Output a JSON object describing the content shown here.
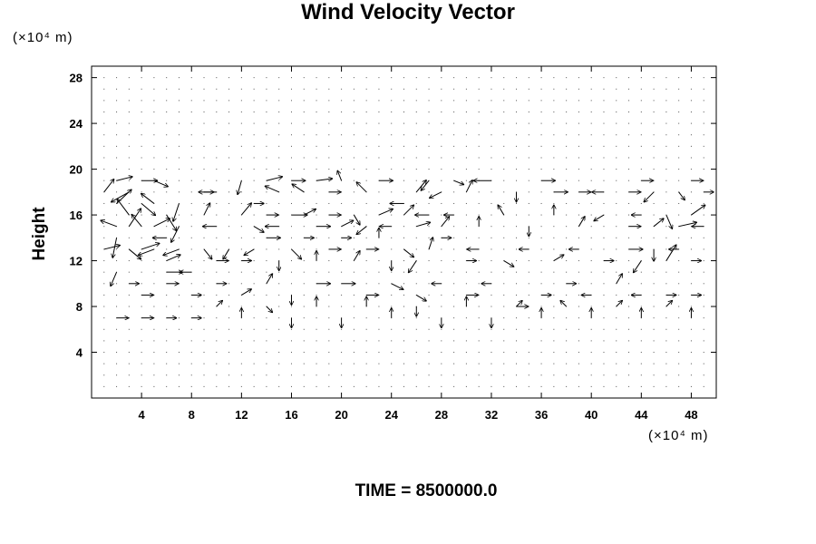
{
  "chart_data": {
    "type": "vector-field",
    "title": "Wind Velocity Vector",
    "ylabel": "Height",
    "xlabel": "",
    "x_unit_label": "(×10⁴ m)",
    "y_unit_label": "(×10⁴ m)",
    "xlim": [
      0,
      50
    ],
    "ylim": [
      0,
      29
    ],
    "xticks": [
      4,
      8,
      12,
      16,
      20,
      24,
      28,
      32,
      36,
      40,
      44,
      48
    ],
    "yticks": [
      4,
      8,
      12,
      16,
      20,
      24,
      28
    ],
    "x_tick_labels": [
      "4",
      "8",
      "12",
      "16",
      "20",
      "24",
      "28",
      "32",
      "36",
      "40",
      "44",
      "48"
    ],
    "y_tick_labels": [
      "4",
      "8",
      "12",
      "16",
      "20",
      "24",
      "28"
    ],
    "grid": false,
    "vector_color": "#000000",
    "note": "",
    "footer": "TIME = 8500000.0",
    "vectors": [
      {
        "x": 1,
        "y": 18,
        "u": 1.0,
        "v": 1.3
      },
      {
        "x": 2,
        "y": 19,
        "u": 1.6,
        "v": 0.4
      },
      {
        "x": 3,
        "y": 18,
        "u": -1.8,
        "v": -1.0
      },
      {
        "x": 4,
        "y": 19,
        "u": 1.6,
        "v": 0.0
      },
      {
        "x": 5,
        "y": 19,
        "u": 1.4,
        "v": -0.6
      },
      {
        "x": 2,
        "y": 17,
        "u": 1.5,
        "v": 1.4
      },
      {
        "x": 3,
        "y": 16,
        "u": -1.2,
        "v": 1.6
      },
      {
        "x": 4,
        "y": 17,
        "u": 1.4,
        "v": -1.2
      },
      {
        "x": 5,
        "y": 17,
        "u": -1.3,
        "v": 1.0
      },
      {
        "x": 6,
        "y": 16,
        "u": 1.0,
        "v": -1.6
      },
      {
        "x": 7,
        "y": 17,
        "u": -0.6,
        "v": -1.8
      },
      {
        "x": 2,
        "y": 15,
        "u": -1.6,
        "v": 0.6
      },
      {
        "x": 3,
        "y": 15,
        "u": 1.2,
        "v": 1.8
      },
      {
        "x": 4,
        "y": 15,
        "u": -1.0,
        "v": 1.2
      },
      {
        "x": 5,
        "y": 15,
        "u": 1.6,
        "v": 0.8
      },
      {
        "x": 6,
        "y": 14,
        "u": -1.4,
        "v": 0.0
      },
      {
        "x": 7,
        "y": 15,
        "u": -0.8,
        "v": -1.6
      },
      {
        "x": 1,
        "y": 13,
        "u": 1.6,
        "v": 0.4
      },
      {
        "x": 2,
        "y": 14,
        "u": -0.4,
        "v": -2.0
      },
      {
        "x": 3,
        "y": 13,
        "u": 1.2,
        "v": -1.0
      },
      {
        "x": 4,
        "y": 13,
        "u": 1.8,
        "v": 0.6
      },
      {
        "x": 5,
        "y": 13,
        "u": -1.6,
        "v": -0.6
      },
      {
        "x": 6,
        "y": 12,
        "u": 1.4,
        "v": 0.6
      },
      {
        "x": 7,
        "y": 13,
        "u": -1.6,
        "v": -0.6
      },
      {
        "x": 2,
        "y": 11,
        "u": -0.6,
        "v": -1.4
      },
      {
        "x": 6,
        "y": 11,
        "u": 1.6,
        "v": 0.0
      },
      {
        "x": 8,
        "y": 11,
        "u": -1.2,
        "v": 0.0
      },
      {
        "x": 9,
        "y": 18,
        "u": 1.0,
        "v": 0.0
      },
      {
        "x": 10,
        "y": 18,
        "u": -1.8,
        "v": 0.0
      },
      {
        "x": 12,
        "y": 19,
        "u": -0.4,
        "v": -1.4
      },
      {
        "x": 13,
        "y": 17,
        "u": 1.0,
        "v": 0.0
      },
      {
        "x": 14,
        "y": 19,
        "u": 1.6,
        "v": 0.4
      },
      {
        "x": 15,
        "y": 18,
        "u": -1.4,
        "v": 0.6
      },
      {
        "x": 16,
        "y": 19,
        "u": 1.4,
        "v": 0.0
      },
      {
        "x": 17,
        "y": 18,
        "u": -1.2,
        "v": 0.8
      },
      {
        "x": 18,
        "y": 19,
        "u": 1.6,
        "v": 0.2
      },
      {
        "x": 19,
        "y": 18,
        "u": 1.2,
        "v": 0.0
      },
      {
        "x": 20,
        "y": 19,
        "u": -0.4,
        "v": 1.0
      },
      {
        "x": 22,
        "y": 18,
        "u": -1.0,
        "v": 1.0
      },
      {
        "x": 23,
        "y": 19,
        "u": 1.4,
        "v": 0.0
      },
      {
        "x": 25,
        "y": 17,
        "u": -1.4,
        "v": 0.0
      },
      {
        "x": 26,
        "y": 18,
        "u": 1.0,
        "v": 1.2
      },
      {
        "x": 27,
        "y": 19,
        "u": -0.8,
        "v": -1.0
      },
      {
        "x": 28,
        "y": 18,
        "u": -1.2,
        "v": -0.6
      },
      {
        "x": 29,
        "y": 19,
        "u": 1.0,
        "v": -0.4
      },
      {
        "x": 30,
        "y": 18,
        "u": 0.6,
        "v": 1.2
      },
      {
        "x": 32,
        "y": 19,
        "u": -1.8,
        "v": 0.0
      },
      {
        "x": 34,
        "y": 18,
        "u": 0.0,
        "v": -1.0
      },
      {
        "x": 36,
        "y": 19,
        "u": 1.4,
        "v": 0.0
      },
      {
        "x": 37,
        "y": 18,
        "u": 1.4,
        "v": 0.0
      },
      {
        "x": 39,
        "y": 18,
        "u": 1.2,
        "v": 0.0
      },
      {
        "x": 41,
        "y": 18,
        "u": -1.2,
        "v": 0.0
      },
      {
        "x": 43,
        "y": 18,
        "u": 1.2,
        "v": 0.0
      },
      {
        "x": 44,
        "y": 19,
        "u": 1.2,
        "v": 0.0
      },
      {
        "x": 45,
        "y": 18,
        "u": -1.0,
        "v": -1.0
      },
      {
        "x": 47,
        "y": 18,
        "u": 0.6,
        "v": -0.8
      },
      {
        "x": 48,
        "y": 19,
        "u": 1.2,
        "v": 0.0
      },
      {
        "x": 49,
        "y": 18,
        "u": 1.0,
        "v": 0.0
      },
      {
        "x": 9,
        "y": 16,
        "u": 0.6,
        "v": 1.2
      },
      {
        "x": 10,
        "y": 15,
        "u": -1.4,
        "v": 0.0
      },
      {
        "x": 12,
        "y": 16,
        "u": 1.0,
        "v": 1.2
      },
      {
        "x": 13,
        "y": 15,
        "u": 1.0,
        "v": -0.6
      },
      {
        "x": 14,
        "y": 16,
        "u": 1.2,
        "v": 0.0
      },
      {
        "x": 15,
        "y": 15,
        "u": -1.4,
        "v": 0.0
      },
      {
        "x": 16,
        "y": 16,
        "u": 1.6,
        "v": 0.0
      },
      {
        "x": 17,
        "y": 16,
        "u": 1.2,
        "v": 0.6
      },
      {
        "x": 18,
        "y": 15,
        "u": 1.4,
        "v": 0.0
      },
      {
        "x": 19,
        "y": 16,
        "u": 1.2,
        "v": 0.0
      },
      {
        "x": 20,
        "y": 15,
        "u": 1.2,
        "v": 0.6
      },
      {
        "x": 21,
        "y": 16,
        "u": 0.6,
        "v": -1.0
      },
      {
        "x": 22,
        "y": 15,
        "u": -1.0,
        "v": -0.8
      },
      {
        "x": 23,
        "y": 16,
        "u": 1.4,
        "v": 0.6
      },
      {
        "x": 24,
        "y": 15,
        "u": -1.2,
        "v": 0.0
      },
      {
        "x": 25,
        "y": 16,
        "u": 1.0,
        "v": 1.0
      },
      {
        "x": 26,
        "y": 15,
        "u": 1.4,
        "v": 0.4
      },
      {
        "x": 27,
        "y": 16,
        "u": -1.4,
        "v": 0.0
      },
      {
        "x": 28,
        "y": 15,
        "u": 0.8,
        "v": 1.0
      },
      {
        "x": 29,
        "y": 16,
        "u": -1.0,
        "v": 0.0
      },
      {
        "x": 31,
        "y": 15,
        "u": 0.0,
        "v": 1.0
      },
      {
        "x": 33,
        "y": 16,
        "u": -0.6,
        "v": 1.0
      },
      {
        "x": 35,
        "y": 15,
        "u": 0.0,
        "v": -1.0
      },
      {
        "x": 37,
        "y": 16,
        "u": 0.0,
        "v": 1.0
      },
      {
        "x": 39,
        "y": 15,
        "u": 0.6,
        "v": 1.0
      },
      {
        "x": 41,
        "y": 16,
        "u": -1.0,
        "v": -0.6
      },
      {
        "x": 43,
        "y": 15,
        "u": 1.2,
        "v": 0.0
      },
      {
        "x": 44,
        "y": 16,
        "u": -1.0,
        "v": 0.0
      },
      {
        "x": 45,
        "y": 15,
        "u": 1.0,
        "v": 0.8
      },
      {
        "x": 46,
        "y": 16,
        "u": 0.6,
        "v": -1.4
      },
      {
        "x": 47,
        "y": 15,
        "u": 1.8,
        "v": 0.4
      },
      {
        "x": 48,
        "y": 16,
        "u": 1.4,
        "v": 1.0
      },
      {
        "x": 49,
        "y": 15,
        "u": -1.2,
        "v": 0.0
      },
      {
        "x": 9,
        "y": 13,
        "u": 0.8,
        "v": -1.0
      },
      {
        "x": 10,
        "y": 12,
        "u": 1.2,
        "v": 0.0
      },
      {
        "x": 11,
        "y": 13,
        "u": -0.6,
        "v": -1.0
      },
      {
        "x": 12,
        "y": 12,
        "u": 1.0,
        "v": 0.0
      },
      {
        "x": 13,
        "y": 13,
        "u": -1.0,
        "v": -0.6
      },
      {
        "x": 14,
        "y": 14,
        "u": 1.4,
        "v": 0.0
      },
      {
        "x": 15,
        "y": 12,
        "u": 0.0,
        "v": -1.0
      },
      {
        "x": 16,
        "y": 13,
        "u": 1.0,
        "v": -1.0
      },
      {
        "x": 17,
        "y": 14,
        "u": 1.0,
        "v": 0.0
      },
      {
        "x": 18,
        "y": 12,
        "u": 0.0,
        "v": 1.0
      },
      {
        "x": 19,
        "y": 13,
        "u": 1.2,
        "v": 0.0
      },
      {
        "x": 20,
        "y": 14,
        "u": 1.0,
        "v": 0.0
      },
      {
        "x": 21,
        "y": 12,
        "u": 0.6,
        "v": 1.0
      },
      {
        "x": 22,
        "y": 13,
        "u": 1.2,
        "v": 0.0
      },
      {
        "x": 23,
        "y": 14,
        "u": 0.0,
        "v": 1.0
      },
      {
        "x": 24,
        "y": 12,
        "u": 0.0,
        "v": -1.0
      },
      {
        "x": 25,
        "y": 13,
        "u": 1.0,
        "v": -0.8
      },
      {
        "x": 26,
        "y": 12,
        "u": -0.8,
        "v": -1.2
      },
      {
        "x": 27,
        "y": 13,
        "u": 0.4,
        "v": 1.2
      },
      {
        "x": 28,
        "y": 14,
        "u": 1.0,
        "v": 0.0
      },
      {
        "x": 30,
        "y": 12,
        "u": 1.0,
        "v": 0.0
      },
      {
        "x": 31,
        "y": 13,
        "u": -1.2,
        "v": 0.0
      },
      {
        "x": 33,
        "y": 12,
        "u": 1.0,
        "v": -0.6
      },
      {
        "x": 35,
        "y": 13,
        "u": -1.0,
        "v": 0.0
      },
      {
        "x": 37,
        "y": 12,
        "u": 1.0,
        "v": 0.6
      },
      {
        "x": 39,
        "y": 13,
        "u": -1.0,
        "v": 0.0
      },
      {
        "x": 41,
        "y": 12,
        "u": 1.0,
        "v": 0.0
      },
      {
        "x": 43,
        "y": 13,
        "u": 1.4,
        "v": 0.0
      },
      {
        "x": 44,
        "y": 12,
        "u": -0.8,
        "v": -1.2
      },
      {
        "x": 45,
        "y": 13,
        "u": 0.0,
        "v": -1.2
      },
      {
        "x": 46,
        "y": 12,
        "u": 1.0,
        "v": 1.6
      },
      {
        "x": 47,
        "y": 13,
        "u": -1.0,
        "v": 0.0
      },
      {
        "x": 48,
        "y": 12,
        "u": 1.0,
        "v": 0.0
      },
      {
        "x": 3,
        "y": 10,
        "u": 1.0,
        "v": 0.0
      },
      {
        "x": 4,
        "y": 9,
        "u": 1.2,
        "v": 0.0
      },
      {
        "x": 6,
        "y": 10,
        "u": 1.2,
        "v": 0.0
      },
      {
        "x": 8,
        "y": 9,
        "u": 1.0,
        "v": 0.0
      },
      {
        "x": 10,
        "y": 10,
        "u": 1.0,
        "v": 0.0
      },
      {
        "x": 12,
        "y": 9,
        "u": 1.0,
        "v": 0.6
      },
      {
        "x": 14,
        "y": 10,
        "u": 0.6,
        "v": 1.0
      },
      {
        "x": 16,
        "y": 9,
        "u": 0.0,
        "v": -1.0
      },
      {
        "x": 18,
        "y": 10,
        "u": 1.4,
        "v": 0.0
      },
      {
        "x": 20,
        "y": 10,
        "u": 1.4,
        "v": 0.0
      },
      {
        "x": 22,
        "y": 9,
        "u": 1.2,
        "v": 0.0
      },
      {
        "x": 24,
        "y": 10,
        "u": 1.2,
        "v": -0.6
      },
      {
        "x": 26,
        "y": 9,
        "u": 1.0,
        "v": -0.6
      },
      {
        "x": 28,
        "y": 10,
        "u": -1.0,
        "v": 0.0
      },
      {
        "x": 30,
        "y": 9,
        "u": 1.2,
        "v": 0.0
      },
      {
        "x": 32,
        "y": 10,
        "u": -1.0,
        "v": 0.0
      },
      {
        "x": 34,
        "y": 8,
        "u": 1.2,
        "v": 0.0
      },
      {
        "x": 36,
        "y": 9,
        "u": 1.0,
        "v": 0.0
      },
      {
        "x": 38,
        "y": 10,
        "u": 1.0,
        "v": 0.0
      },
      {
        "x": 40,
        "y": 9,
        "u": -1.0,
        "v": 0.0
      },
      {
        "x": 42,
        "y": 10,
        "u": 0.6,
        "v": 1.0
      },
      {
        "x": 44,
        "y": 9,
        "u": -1.0,
        "v": 0.0
      },
      {
        "x": 46,
        "y": 9,
        "u": 1.0,
        "v": 0.0
      },
      {
        "x": 48,
        "y": 9,
        "u": 1.0,
        "v": 0.0
      },
      {
        "x": 2,
        "y": 7,
        "u": 1.2,
        "v": 0.0
      },
      {
        "x": 4,
        "y": 7,
        "u": 1.2,
        "v": 0.0
      },
      {
        "x": 6,
        "y": 7,
        "u": 1.0,
        "v": 0.0
      },
      {
        "x": 8,
        "y": 7,
        "u": 1.0,
        "v": 0.0
      },
      {
        "x": 10,
        "y": 8,
        "u": 0.6,
        "v": 0.6
      },
      {
        "x": 12,
        "y": 7,
        "u": 0.0,
        "v": 1.0
      },
      {
        "x": 14,
        "y": 8,
        "u": 0.6,
        "v": -0.6
      },
      {
        "x": 16,
        "y": 7,
        "u": 0.0,
        "v": -1.0
      },
      {
        "x": 18,
        "y": 8,
        "u": 0.0,
        "v": 1.0
      },
      {
        "x": 20,
        "y": 7,
        "u": 0.0,
        "v": -1.0
      },
      {
        "x": 22,
        "y": 8,
        "u": 0.0,
        "v": 1.0
      },
      {
        "x": 24,
        "y": 7,
        "u": 0.0,
        "v": 1.0
      },
      {
        "x": 26,
        "y": 8,
        "u": 0.0,
        "v": -1.0
      },
      {
        "x": 28,
        "y": 7,
        "u": 0.0,
        "v": -1.0
      },
      {
        "x": 30,
        "y": 8,
        "u": 0.0,
        "v": 1.0
      },
      {
        "x": 32,
        "y": 7,
        "u": 0.0,
        "v": -1.0
      },
      {
        "x": 34,
        "y": 8,
        "u": 0.6,
        "v": 0.6
      },
      {
        "x": 36,
        "y": 7,
        "u": 0.0,
        "v": 1.0
      },
      {
        "x": 38,
        "y": 8,
        "u": -0.6,
        "v": 0.6
      },
      {
        "x": 40,
        "y": 7,
        "u": 0.0,
        "v": 1.0
      },
      {
        "x": 42,
        "y": 8,
        "u": 0.6,
        "v": 0.6
      },
      {
        "x": 44,
        "y": 7,
        "u": 0.0,
        "v": 1.0
      },
      {
        "x": 46,
        "y": 8,
        "u": 0.6,
        "v": 0.6
      },
      {
        "x": 48,
        "y": 7,
        "u": 0.0,
        "v": 1.0
      }
    ]
  }
}
